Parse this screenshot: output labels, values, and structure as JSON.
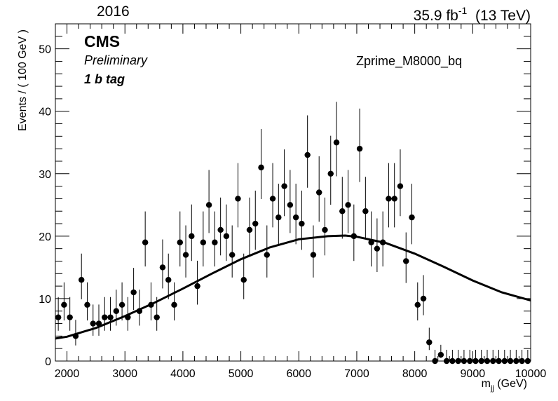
{
  "header": {
    "year": "2016",
    "lumi": "35.9 fb",
    "lumi_exp": "-1",
    "energy": "(13 TeV)"
  },
  "labels": {
    "experiment": "CMS",
    "status": "Preliminary",
    "category": "1 b tag",
    "sample": "Zprime_M8000_bq"
  },
  "chart_data": {
    "type": "scatter",
    "xlabel": "m",
    "xlabel_sub": "jj",
    "xlabel_unit": "(GeV)",
    "ylabel": "Events / ( 100 GeV )",
    "xlim": [
      1800,
      10000
    ],
    "ylim": [
      0,
      54
    ],
    "x_ticks": [
      2000,
      3000,
      4000,
      5000,
      6000,
      7000,
      8000,
      9000,
      10000
    ],
    "y_ticks": [
      0,
      10,
      20,
      30,
      40,
      50
    ],
    "grid": false,
    "legend": "none",
    "series": [
      {
        "type": "points_with_errors",
        "x": [
          1850,
          1950,
          2050,
          2150,
          2250,
          2350,
          2450,
          2550,
          2650,
          2750,
          2850,
          2950,
          3050,
          3150,
          3250,
          3350,
          3450,
          3550,
          3650,
          3750,
          3850,
          3950,
          4050,
          4150,
          4250,
          4350,
          4450,
          4550,
          4650,
          4750,
          4850,
          4950,
          5050,
          5150,
          5250,
          5350,
          5450,
          5550,
          5650,
          5750,
          5850,
          5950,
          6050,
          6150,
          6250,
          6350,
          6450,
          6550,
          6650,
          6750,
          6850,
          6950,
          7050,
          7150,
          7250,
          7350,
          7450,
          7550,
          7650,
          7750,
          7850,
          7950,
          8050,
          8150,
          8250,
          8350,
          8450,
          8550,
          8650,
          8750,
          8850,
          8950,
          9050,
          9150,
          9250,
          9350,
          9450,
          9550,
          9650,
          9750,
          9850,
          9950
        ],
        "y": [
          7,
          9,
          7,
          4,
          13,
          9,
          6,
          6,
          7,
          7,
          8,
          9,
          7,
          11,
          8,
          19,
          9,
          7,
          15,
          13,
          9,
          19,
          17,
          20,
          12,
          19,
          25,
          19,
          21,
          20,
          17,
          26,
          13,
          21,
          22,
          31,
          17,
          26,
          23,
          28,
          25,
          23,
          22,
          33,
          17,
          27,
          21,
          30,
          35,
          24,
          25,
          20,
          34,
          24,
          19,
          18,
          19,
          26,
          26,
          28,
          16,
          23,
          9,
          10,
          3,
          0,
          1,
          0,
          0,
          0,
          0,
          0,
          0,
          0,
          0,
          0,
          0,
          0,
          0,
          0,
          0,
          0
        ]
      },
      {
        "type": "fit_line",
        "x": [
          1800,
          2000,
          2500,
          3000,
          3500,
          4000,
          4500,
          5000,
          5500,
          6000,
          6500,
          6800,
          7000,
          7500,
          8000,
          8500,
          9000,
          9500,
          10000
        ],
        "y": [
          3.6,
          3.9,
          5.3,
          7.2,
          9.3,
          11.6,
          14.0,
          16.3,
          18.2,
          19.5,
          20.0,
          20.1,
          19.9,
          18.9,
          17.2,
          15.1,
          12.9,
          11.0,
          9.7
        ]
      }
    ]
  }
}
